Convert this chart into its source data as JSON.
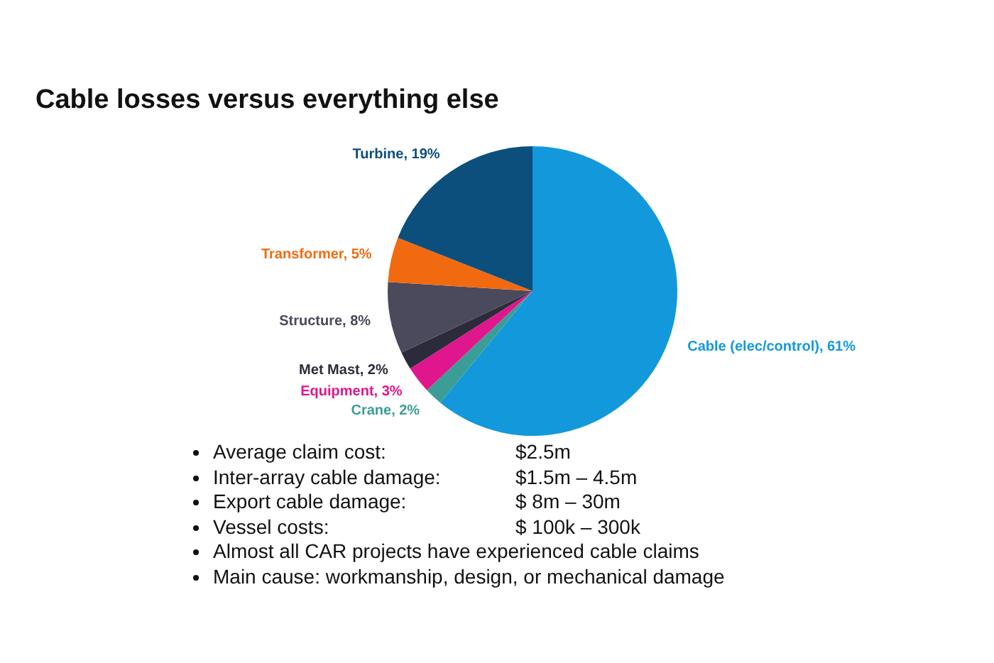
{
  "chart_data": {
    "type": "pie",
    "title": "Cable losses versus everything else",
    "categories": [
      "Cable (elec/control)",
      "Crane",
      "Equipment",
      "Met Mast",
      "Structure",
      "Transformer",
      "Turbine"
    ],
    "values": [
      61,
      2,
      3,
      2,
      8,
      5,
      19
    ],
    "colors": [
      "#1399db",
      "#3a9e96",
      "#e0168c",
      "#2b2b3b",
      "#4a4a5c",
      "#f26a10",
      "#0d4f7c"
    ],
    "value_labels": [
      "61%",
      "2%",
      "3%",
      "2%",
      "8%",
      "5%",
      "19%"
    ],
    "annotations": [
      "Average claim cost:\t$2.5m",
      "Inter-array cable damage:\t$1.5m – 4.5m",
      "Export cable damage:\t$ 8m – 30m",
      "Vessel costs:\t$ 100k – 300k",
      "Almost all CAR projects have experienced cable claims",
      "Main cause: workmanship, design, or mechanical damage"
    ]
  }
}
